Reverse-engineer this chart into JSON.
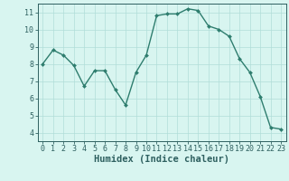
{
  "x": [
    0,
    1,
    2,
    3,
    4,
    5,
    6,
    7,
    8,
    9,
    10,
    11,
    12,
    13,
    14,
    15,
    16,
    17,
    18,
    19,
    20,
    21,
    22,
    23
  ],
  "y": [
    8.0,
    8.8,
    8.5,
    7.9,
    6.7,
    7.6,
    7.6,
    6.5,
    5.6,
    7.5,
    8.5,
    10.8,
    10.9,
    10.9,
    11.2,
    11.1,
    10.2,
    10.0,
    9.6,
    8.3,
    7.5,
    6.1,
    4.3,
    4.2
  ],
  "line_color": "#2e7d6e",
  "marker": "D",
  "marker_size": 2.0,
  "bg_color": "#d8f5f0",
  "grid_color": "#b0ddd8",
  "xlabel": "Humidex (Indice chaleur)",
  "xlim": [
    -0.5,
    23.5
  ],
  "ylim": [
    3.5,
    11.5
  ],
  "yticks": [
    4,
    5,
    6,
    7,
    8,
    9,
    10,
    11
  ],
  "xticks": [
    0,
    1,
    2,
    3,
    4,
    5,
    6,
    7,
    8,
    9,
    10,
    11,
    12,
    13,
    14,
    15,
    16,
    17,
    18,
    19,
    20,
    21,
    22,
    23
  ],
  "tick_color": "#2e6060",
  "label_color": "#2e6060",
  "font_size_axis": 6.0,
  "font_size_label": 7.5,
  "line_width": 1.0
}
